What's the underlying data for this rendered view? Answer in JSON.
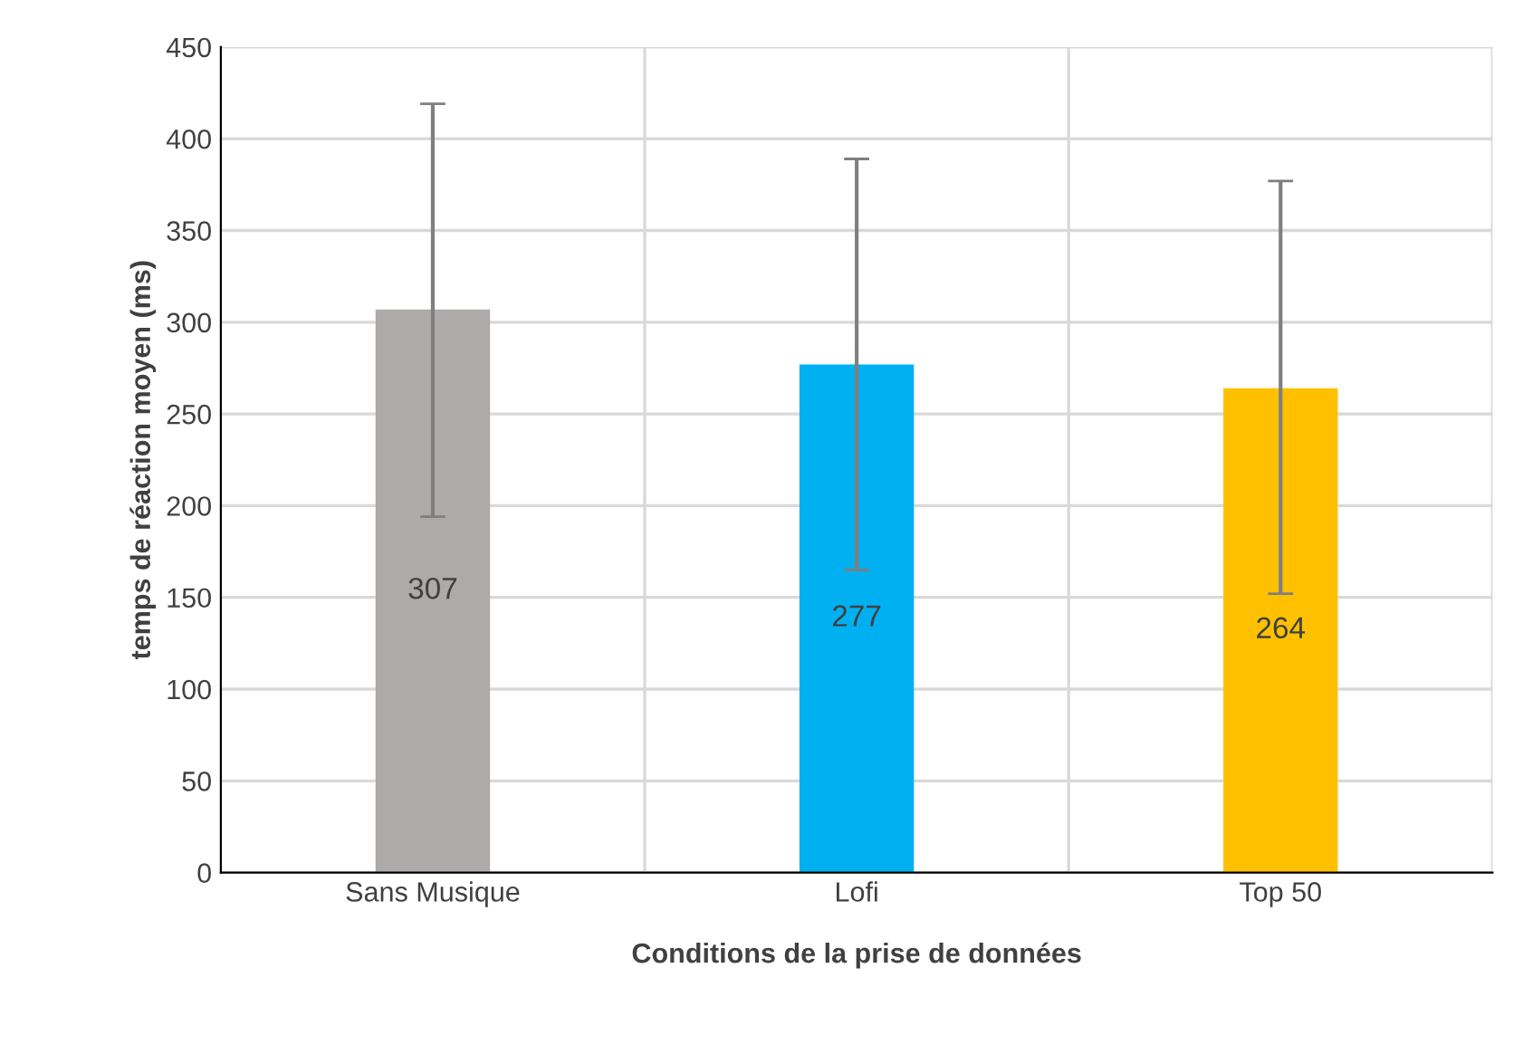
{
  "chart_data": {
    "type": "bar",
    "xlabel": "Conditions de la prise de données",
    "ylabel": "temps de réaction moyen (ms)",
    "categories": [
      "Sans Musique",
      "Lofi",
      "Top 50"
    ],
    "values": [
      307,
      277,
      264
    ],
    "colors": [
      "#aeaaaa",
      "#00b0f0",
      "#ffc000"
    ],
    "errors": [
      [
        194,
        419
      ],
      [
        165,
        389
      ],
      [
        152,
        377
      ]
    ],
    "ylim": [
      0,
      450
    ],
    "yticks": [
      0,
      50,
      100,
      150,
      200,
      250,
      300,
      350,
      400,
      450
    ],
    "grid": true,
    "data_labels": true
  }
}
